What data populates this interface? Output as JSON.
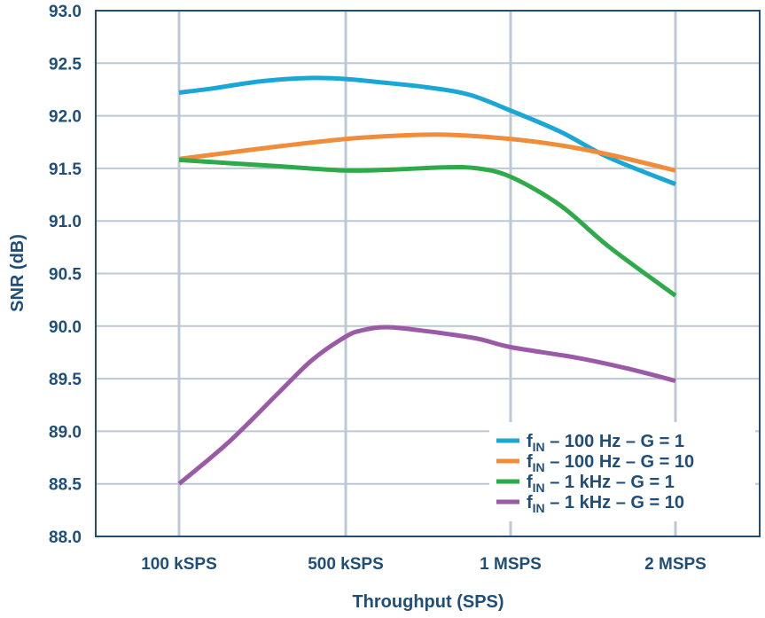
{
  "chart_data": {
    "type": "line",
    "title": "",
    "xlabel": "Throughput (SPS)",
    "ylabel": "SNR (dB)",
    "categories": [
      "100 kSPS",
      "500 kSPS",
      "1 MSPS",
      "2 MSPS"
    ],
    "yticks": [
      "88.0",
      "88.5",
      "89.0",
      "89.5",
      "90.0",
      "90.5",
      "91.0",
      "91.5",
      "92.0",
      "92.5",
      "93.0"
    ],
    "ylim": [
      88.0,
      93.0
    ],
    "grid": true,
    "legend_position": "bottom-right",
    "series": [
      {
        "name": "fIN – 100 Hz – G = 1",
        "legend": {
          "f": "f",
          "sub": "IN",
          "rest": " – 100 Hz – G = 1"
        },
        "color": "#1aa7d6",
        "x": [
          0,
          0.2,
          0.5,
          0.8,
          1.0,
          1.2,
          1.5,
          1.75,
          2.0,
          2.3,
          2.6,
          3.0
        ],
        "values": [
          92.22,
          92.26,
          92.33,
          92.36,
          92.35,
          92.32,
          92.27,
          92.2,
          92.05,
          91.85,
          91.6,
          91.35
        ]
      },
      {
        "name": "fIN – 100 Hz – G = 10",
        "legend": {
          "f": "f",
          "sub": "IN",
          "rest": " – 100 Hz – G = 10"
        },
        "color": "#f08c3a",
        "x": [
          0,
          0.3,
          0.6,
          1.0,
          1.3,
          1.6,
          2.0,
          2.3,
          2.6,
          3.0
        ],
        "values": [
          91.59,
          91.65,
          91.71,
          91.78,
          91.81,
          91.82,
          91.78,
          91.72,
          91.63,
          91.48
        ]
      },
      {
        "name": "fIN – 1 kHz – G = 1",
        "legend": {
          "f": "f",
          "sub": "IN",
          "rest": " – 1 kHz – G = 1"
        },
        "color": "#2eaa4a",
        "x": [
          0,
          0.3,
          0.6,
          1.0,
          1.3,
          1.6,
          1.8,
          2.0,
          2.3,
          2.6,
          3.0
        ],
        "values": [
          91.58,
          91.55,
          91.52,
          91.48,
          91.49,
          91.51,
          91.5,
          91.42,
          91.15,
          90.75,
          90.29
        ]
      },
      {
        "name": "fIN – 1 kHz – G = 10",
        "legend": {
          "f": "f",
          "sub": "IN",
          "rest": " – 1 kHz – G = 10"
        },
        "color": "#9b5aa6",
        "x": [
          0,
          0.3,
          0.6,
          0.8,
          1.0,
          1.1,
          1.25,
          1.5,
          1.8,
          2.0,
          2.4,
          2.7,
          3.0
        ],
        "values": [
          88.5,
          88.9,
          89.37,
          89.68,
          89.9,
          89.96,
          89.99,
          89.95,
          89.88,
          89.8,
          89.7,
          89.6,
          89.48
        ]
      }
    ]
  }
}
